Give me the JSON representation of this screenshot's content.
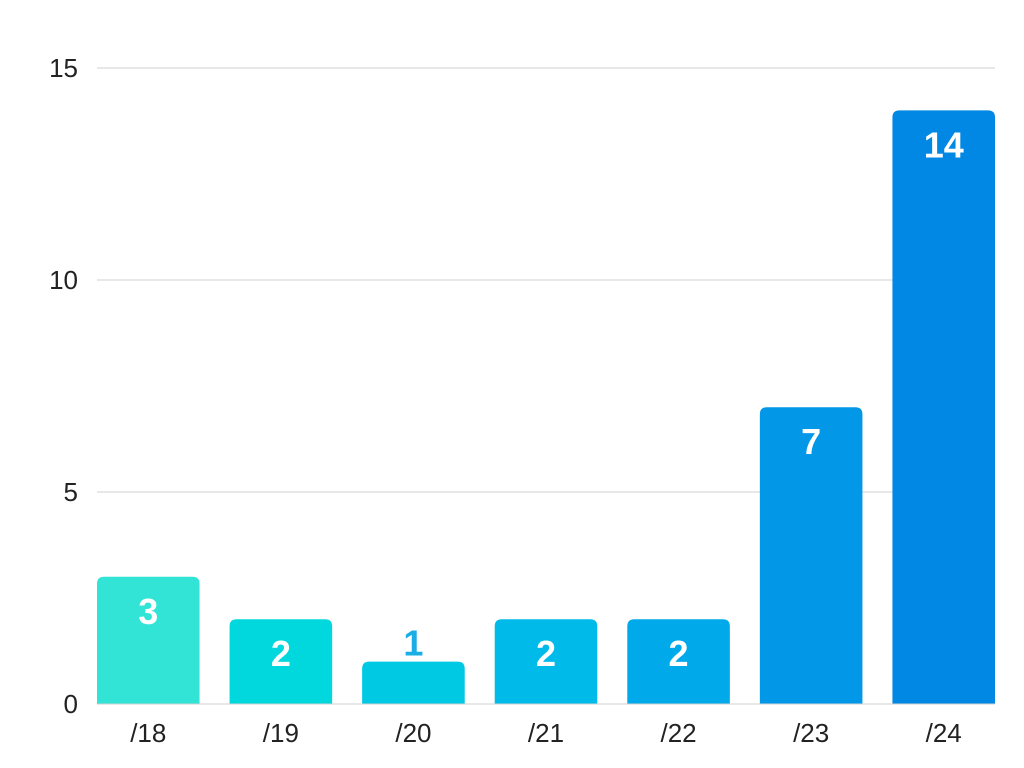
{
  "chart_data": {
    "type": "bar",
    "title": "",
    "xlabel": "",
    "ylabel": "",
    "categories": [
      "/18",
      "/19",
      "/20",
      "/21",
      "/22",
      "/23",
      "/24"
    ],
    "values": [
      3,
      2,
      1,
      2,
      2,
      7,
      14
    ],
    "ylim": [
      0,
      15
    ],
    "yticks": [
      "0",
      "5",
      "10",
      "15"
    ],
    "grid": true,
    "legend": "none",
    "bar_colors": [
      "#31e4d6",
      "#00d8dd",
      "#00c9e3",
      "#00bbe9",
      "#00aaea",
      "#0297e7",
      "#0088e4"
    ],
    "data_label_colors": [
      "#ffffff",
      "#ffffff",
      "#1aaee6",
      "#ffffff",
      "#ffffff",
      "#ffffff",
      "#ffffff"
    ],
    "data_labels": [
      "3",
      "2",
      "1",
      "2",
      "2",
      "7",
      "14"
    ]
  }
}
